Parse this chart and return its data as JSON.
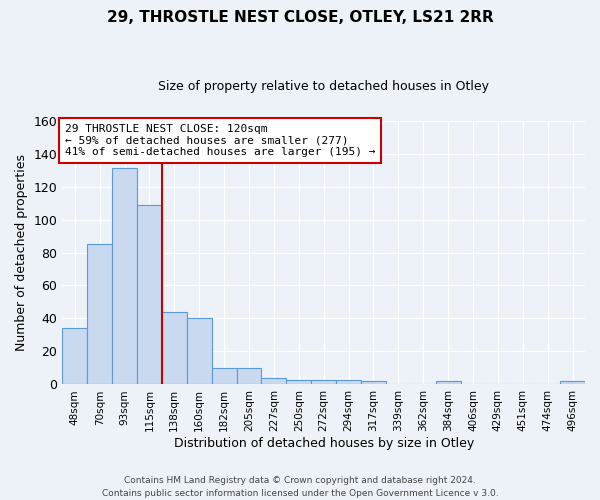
{
  "title": "29, THROSTLE NEST CLOSE, OTLEY, LS21 2RR",
  "subtitle": "Size of property relative to detached houses in Otley",
  "xlabel": "Distribution of detached houses by size in Otley",
  "ylabel": "Number of detached properties",
  "bar_labels": [
    "48sqm",
    "70sqm",
    "93sqm",
    "115sqm",
    "138sqm",
    "160sqm",
    "182sqm",
    "205sqm",
    "227sqm",
    "250sqm",
    "272sqm",
    "294sqm",
    "317sqm",
    "339sqm",
    "362sqm",
    "384sqm",
    "406sqm",
    "429sqm",
    "451sqm",
    "474sqm",
    "496sqm"
  ],
  "bar_values": [
    34,
    85,
    131,
    109,
    44,
    40,
    10,
    10,
    4,
    3,
    3,
    3,
    2,
    0,
    0,
    2,
    0,
    0,
    0,
    0,
    2
  ],
  "bar_color": "#c9d9f0",
  "bar_edge_color": "#5b9bd5",
  "vline_color": "#cc0000",
  "ylim": [
    0,
    160
  ],
  "yticks": [
    0,
    20,
    40,
    60,
    80,
    100,
    120,
    140,
    160
  ],
  "annotation_text": "29 THROSTLE NEST CLOSE: 120sqm\n← 59% of detached houses are smaller (277)\n41% of semi-detached houses are larger (195) →",
  "annotation_box_color": "#ffffff",
  "annotation_box_edge": "#cc0000",
  "footer_text": "Contains HM Land Registry data © Crown copyright and database right 2024.\nContains public sector information licensed under the Open Government Licence v 3.0.",
  "background_color": "#edf2f9"
}
